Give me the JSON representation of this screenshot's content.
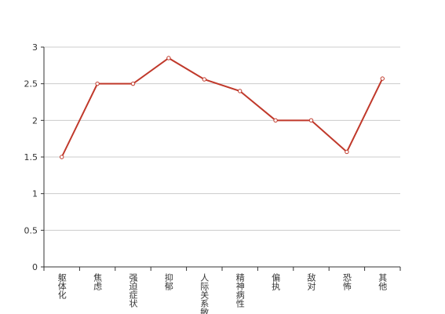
{
  "chart_data": {
    "type": "line",
    "categories": [
      "躯体化",
      "焦虑",
      "强迫症状",
      "抑郁",
      "人际关系敏",
      "精神病性",
      "偏执",
      "敌对",
      "恐怖",
      "其他"
    ],
    "series": [
      {
        "color": "#c0392b",
        "values": [
          1.5,
          2.5,
          2.5,
          2.85,
          2.56,
          2.4,
          2.0,
          2.0,
          1.57,
          2.57
        ]
      }
    ],
    "ylim": [
      0,
      3
    ],
    "yticks": [
      0,
      0.5,
      1,
      1.5,
      2,
      2.5,
      3
    ],
    "grid": true
  }
}
